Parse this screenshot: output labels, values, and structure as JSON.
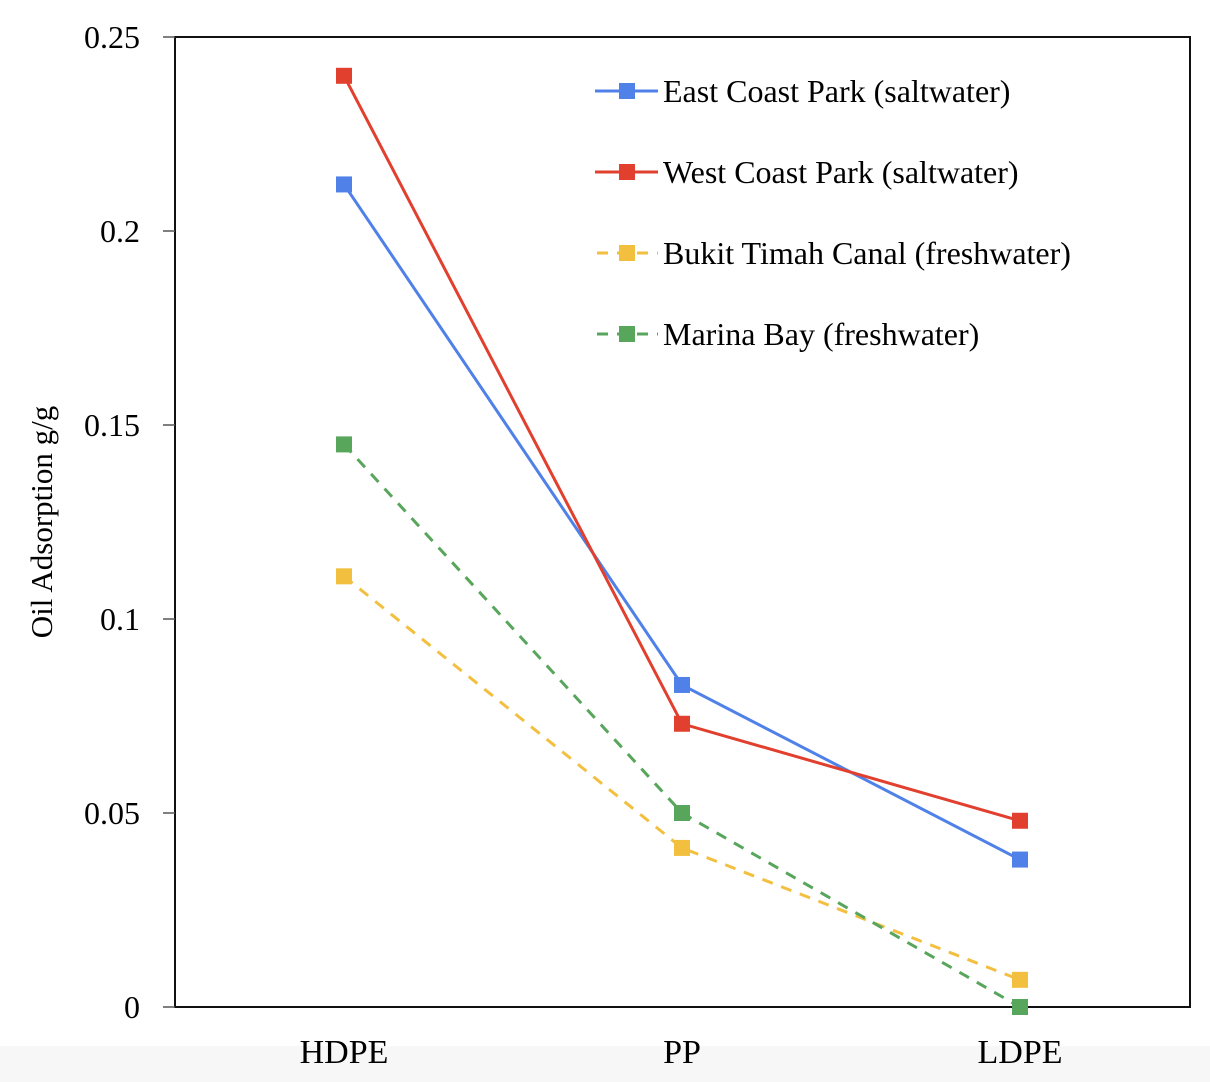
{
  "chart_data": {
    "type": "line",
    "title": "",
    "xlabel": "",
    "ylabel": "Oil Adsorption g/g",
    "categories": [
      "HDPE",
      "PP",
      "LDPE"
    ],
    "ylim": [
      0,
      0.25
    ],
    "yticks": [
      0,
      0.05,
      0.1,
      0.15,
      0.2,
      0.25
    ],
    "ytick_labels": [
      "0",
      "0.05",
      "0.1",
      "0.15",
      "0.2",
      "0.25"
    ],
    "grid": false,
    "legend_position": "top-right",
    "series": [
      {
        "name": "East Coast Park (saltwater)",
        "values": [
          0.212,
          0.083,
          0.038
        ],
        "color": "#4f81e8",
        "dash": "solid",
        "marker": "square"
      },
      {
        "name": "West Coast Park (saltwater)",
        "values": [
          0.24,
          0.073,
          0.048
        ],
        "color": "#e2402f",
        "dash": "solid",
        "marker": "square"
      },
      {
        "name": "Bukit Timah Canal (freshwater)",
        "values": [
          0.111,
          0.041,
          0.007
        ],
        "color": "#f2bf3f",
        "dash": "dashed",
        "marker": "square"
      },
      {
        "name": "Marina Bay (freshwater)",
        "values": [
          0.145,
          0.05,
          0.0
        ],
        "color": "#58a55c",
        "dash": "dashed",
        "marker": "square"
      }
    ]
  }
}
